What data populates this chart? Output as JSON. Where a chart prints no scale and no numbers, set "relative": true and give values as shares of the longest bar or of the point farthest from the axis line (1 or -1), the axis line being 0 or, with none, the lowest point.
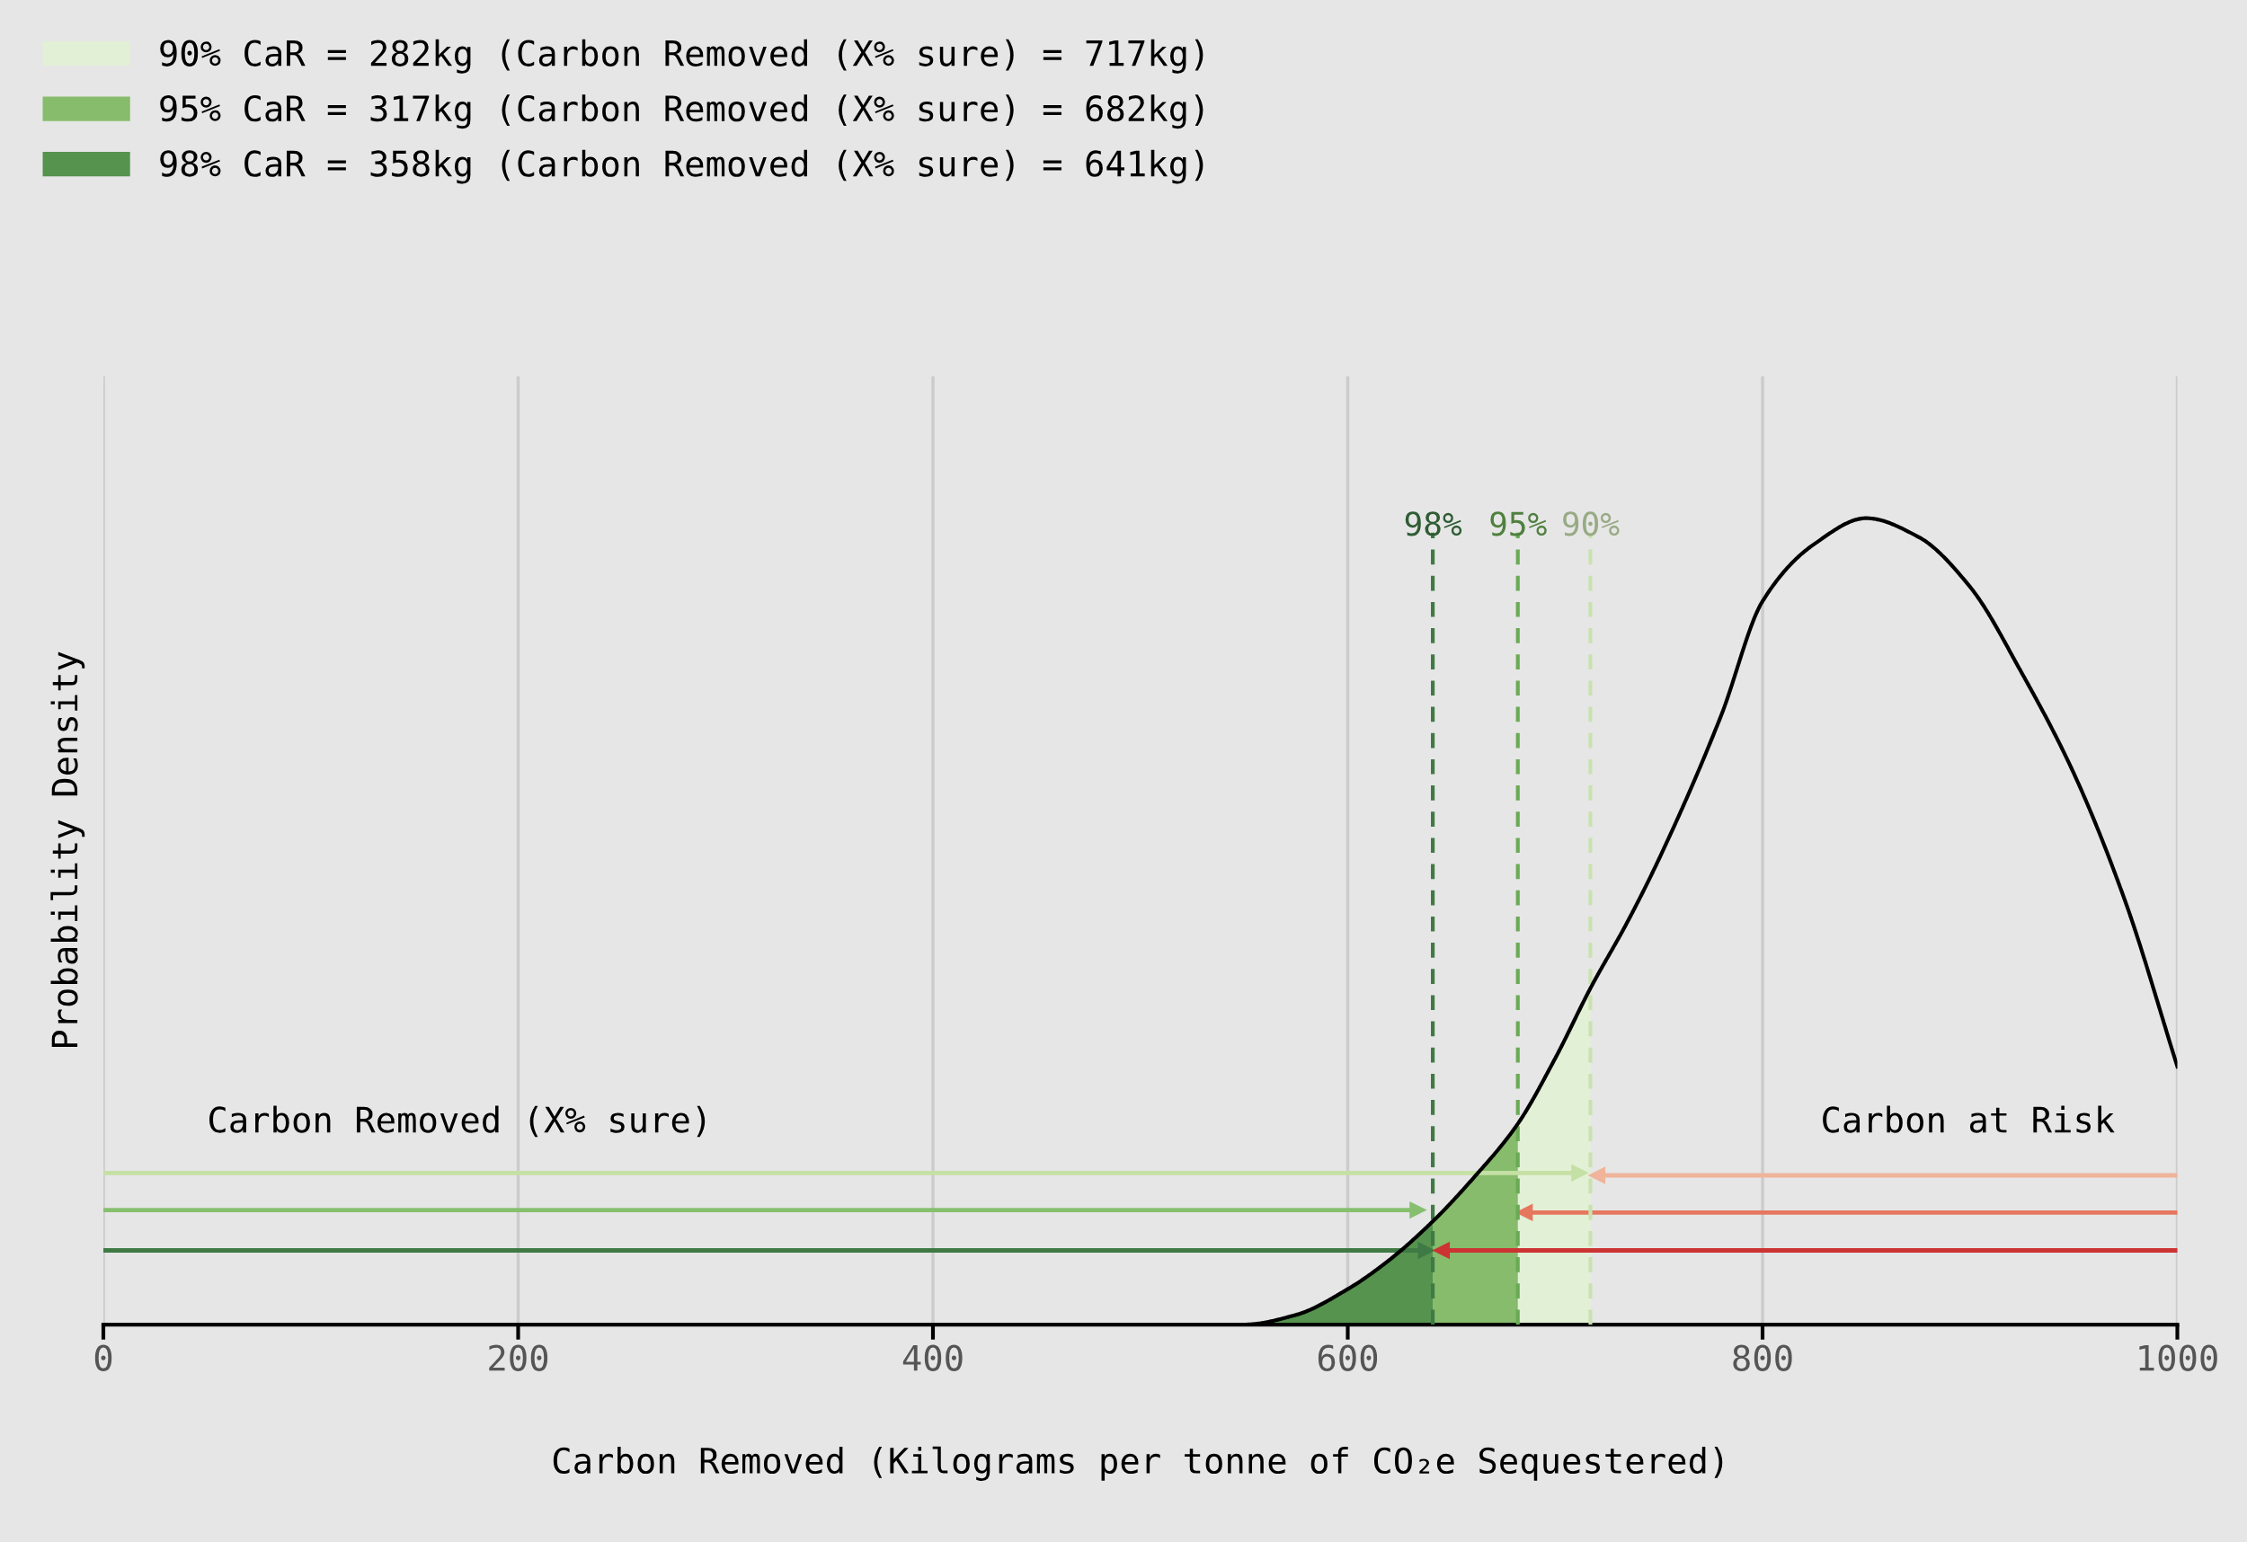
{
  "chart_data": {
    "type": "line",
    "relative": true,
    "xlabel": "Carbon Removed (Kilograms per tonne of CO₂e Sequestered)",
    "ylabel": "Probability Density",
    "xlim": [
      0,
      1000
    ],
    "xticks": [
      0,
      200,
      400,
      600,
      800,
      1000
    ],
    "grid": "x",
    "legend": "top left",
    "tick_labels": "x",
    "series": [
      {
        "color": "#000000",
        "x": [
          460,
          500,
          550,
          575,
          600,
          620,
          641,
          660,
          682,
          700,
          717,
          735,
          750,
          780,
          800,
          825,
          850,
          875,
          900,
          925,
          950,
          975,
          1000
        ],
        "values": [
          0,
          0,
          0,
          0.012,
          0.044,
          0.08,
          0.128,
          0.18,
          0.249,
          0.33,
          0.417,
          0.5,
          0.577,
          0.755,
          0.897,
          0.968,
          1,
          0.977,
          0.915,
          0.808,
          0.684,
          0.524,
          0.32
        ]
      },
      {
        "type": "area",
        "name": "90% CaR = 282kg (Carbon Removed (X% sure) = 717kg)",
        "color": "#e2f0d6",
        "x": [
          682,
          700,
          717
        ],
        "values": [
          0.249,
          0.33,
          0.417
        ]
      },
      {
        "type": "area",
        "name": "95% CaR = 317kg (Carbon Removed (X% sure) = 682kg)",
        "color": "#86bc6b",
        "x": [
          641,
          660,
          682
        ],
        "values": [
          0.128,
          0.18,
          0.249
        ]
      },
      {
        "type": "area",
        "name": "98% CaR = 358kg (Carbon Removed (X% sure) = 641kg)",
        "color": "#55934f",
        "x": [
          550,
          575,
          600,
          620,
          641
        ],
        "values": [
          0,
          0.012,
          0.044,
          0.08,
          0.128
        ]
      },
      {
        "marker": "triangle",
        "color": "#c5e0a5",
        "x": [
          0,
          712
        ],
        "values": [
          0.188,
          0.188
        ]
      },
      {
        "marker": "triangle",
        "color": "#86bf6f",
        "x": [
          0,
          634
        ],
        "values": [
          0.142,
          0.142
        ]
      },
      {
        "marker": "triangle",
        "color": "#3f7a45",
        "x": [
          0,
          638
        ],
        "values": [
          0.092,
          0.092
        ]
      },
      {
        "marker": "triangle",
        "color": "#efb49a",
        "x": [
          1000,
          720
        ],
        "values": [
          0.185,
          0.185
        ]
      },
      {
        "marker": "triangle",
        "color": "#e6775e",
        "x": [
          1000,
          685
        ],
        "values": [
          0.139,
          0.139
        ]
      },
      {
        "marker": "triangle",
        "color": "#cc3333",
        "x": [
          1000,
          645
        ],
        "values": [
          0.092,
          0.092
        ]
      }
    ],
    "ref_lines": [
      {
        "axis": "x",
        "value": 641,
        "color": "#3f7a45",
        "line_style": "dashed"
      },
      {
        "axis": "x",
        "value": 682,
        "color": "#6aaa55",
        "line_style": "dashed"
      },
      {
        "axis": "x",
        "value": 717,
        "color": "#c9e2b0",
        "line_style": "dashed"
      }
    ],
    "annotations": [
      {
        "text": "98%",
        "x": 641,
        "y": 0.97
      },
      {
        "text": "95%",
        "x": 682,
        "y": 0.97
      },
      {
        "text": "90%",
        "x": 717,
        "y": 0.97
      },
      "Carbon Removed (X% sure)",
      "Carbon at Risk"
    ]
  }
}
